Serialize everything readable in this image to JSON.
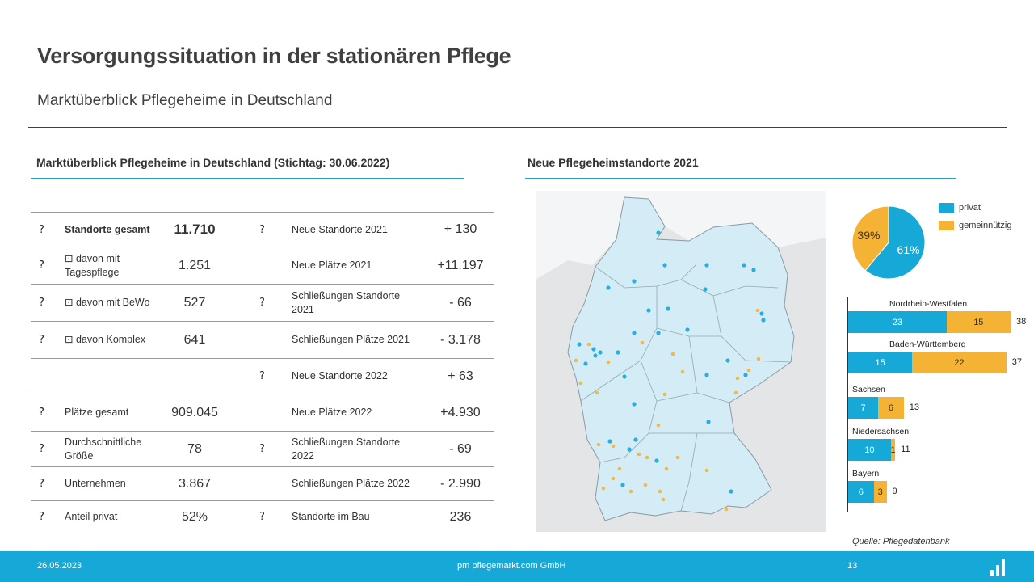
{
  "header": {
    "title": "Versorgungssituation in der stationären Pflege",
    "subtitle": "Marktüberblick  Pflegeheime  in Deutschland"
  },
  "left_section": {
    "heading": "Marktüberblick Pflegeheime in Deutschland (Stichtag: 30.06.2022)",
    "rows": [
      {
        "label_left": "Standorte gesamt",
        "value_left": "11.710",
        "label_right": "Neue Standorte 2021",
        "value_right": "+ 130"
      },
      {
        "label_left": "⊡ davon mit Tagespflege",
        "value_left": "1.251",
        "label_right": "Neue Plätze 2021",
        "value_right": "+11.197"
      },
      {
        "label_left": "⊡ davon mit BeWo",
        "value_left": "527",
        "label_right": "Schließungen  Standorte 2021",
        "value_right": "- 66"
      },
      {
        "label_left": "⊡ davon Komplex",
        "value_left": "641",
        "label_right": "Schließungen  Plätze 2021",
        "value_right": "- 3.178"
      },
      {
        "label_left": "",
        "value_left": "",
        "label_right": "Neue Standorte 2022",
        "value_right": "+ 63"
      },
      {
        "label_left": "Plätze gesamt",
        "value_left": "909.045",
        "label_right": "Neue Plätze 2022",
        "value_right": "+4.930"
      },
      {
        "label_left": "Durchschnittliche Größe",
        "value_left": "78",
        "label_right": "Schließungen  Standorte 2022",
        "value_right": "- 69"
      },
      {
        "label_left": "Unternehmen",
        "value_left": "3.867",
        "label_right": "Schließungen  Plätze 2022",
        "value_right": "- 2.990"
      },
      {
        "label_left": "Anteil privat",
        "value_left": "52%",
        "label_right": "Standorte im Bau",
        "value_right": "236"
      }
    ],
    "icon_glyph": "?"
  },
  "right_section": {
    "heading": "Neue Pflegeheimstandorte 2021",
    "legend": [
      {
        "label": "privat",
        "color": "#16a8d6"
      },
      {
        "label": "gemeinnützig",
        "color": "#f5b335"
      }
    ],
    "pie": {
      "privat_pct": 61,
      "gemeinnuetzig_pct": 39,
      "privat_label": "61%",
      "gemeinnuetzig_label": "39%"
    },
    "source": "Quelle: Pflegedatenbank"
  },
  "chart_data": [
    {
      "type": "pie",
      "categories": [
        "privat",
        "gemeinnützig"
      ],
      "values": [
        61,
        39
      ]
    },
    {
      "type": "bar",
      "orientation": "horizontal",
      "stacked": true,
      "categories": [
        "Nordrhein-Westfalen",
        "Baden-Württemberg",
        "Sachsen",
        "Niedersachsen",
        "Bayern"
      ],
      "series": [
        {
          "name": "privat",
          "values": [
            23,
            15,
            7,
            10,
            6
          ]
        },
        {
          "name": "gemeinnützig",
          "values": [
            15,
            22,
            6,
            1,
            3
          ]
        }
      ],
      "totals": [
        38,
        37,
        13,
        11,
        9
      ],
      "xlim": [
        0,
        38
      ]
    }
  ],
  "footer": {
    "date": "26.05.2023",
    "company": "pm pflegemarkt.com GmbH",
    "page": "13"
  },
  "colors": {
    "accent": "#16a8d6",
    "secondary": "#f5b335"
  }
}
